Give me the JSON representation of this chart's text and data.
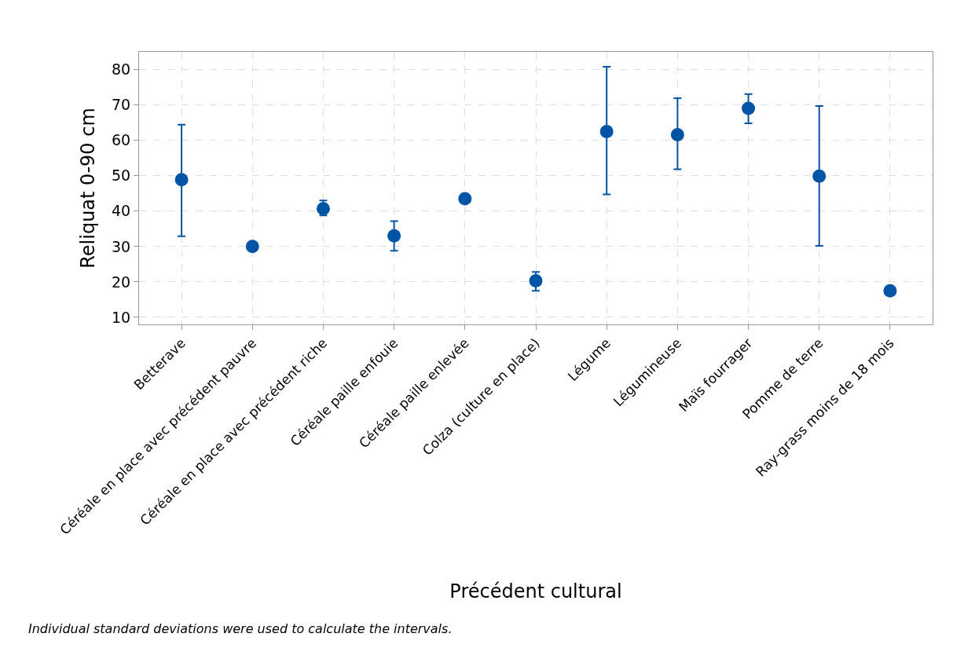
{
  "chart_data": {
    "type": "scatter",
    "xlabel": "Précédent cultural",
    "ylabel": "Reliquat 0-90 cm",
    "categories": [
      "Betterave",
      "Céréale en place avec précédent pauvre",
      "Céréale en place avec précédent riche",
      "Céréale paille enfouie",
      "Céréale paille enlevée",
      "Colza (culture en place)",
      "Légume",
      "Légumineuse",
      "Maïs fourrager",
      "Pomme de terre",
      "Ray-grass moins de 18 mois"
    ],
    "series": [
      {
        "color": "#0054a6",
        "values": [
          48.9,
          30.0,
          40.7,
          33.0,
          43.5,
          20.3,
          62.5,
          61.6,
          69.0,
          49.9,
          17.5
        ],
        "errors": [
          [
            32.9,
            64.4
          ],
          null,
          [
            38.8,
            43.0
          ],
          [
            28.8,
            37.2
          ],
          null,
          [
            17.5,
            22.8
          ],
          [
            44.7,
            80.8
          ],
          [
            51.8,
            71.9
          ],
          [
            64.8,
            73.1
          ],
          [
            30.2,
            69.7
          ],
          null
        ]
      }
    ],
    "ylim": [
      8,
      85
    ],
    "yticks": [
      10,
      20,
      30,
      40,
      50,
      60,
      70,
      80
    ],
    "grid": true,
    "marker": "circle",
    "annotations": [
      "Individual standard deviations were used to calculate the intervals."
    ]
  }
}
